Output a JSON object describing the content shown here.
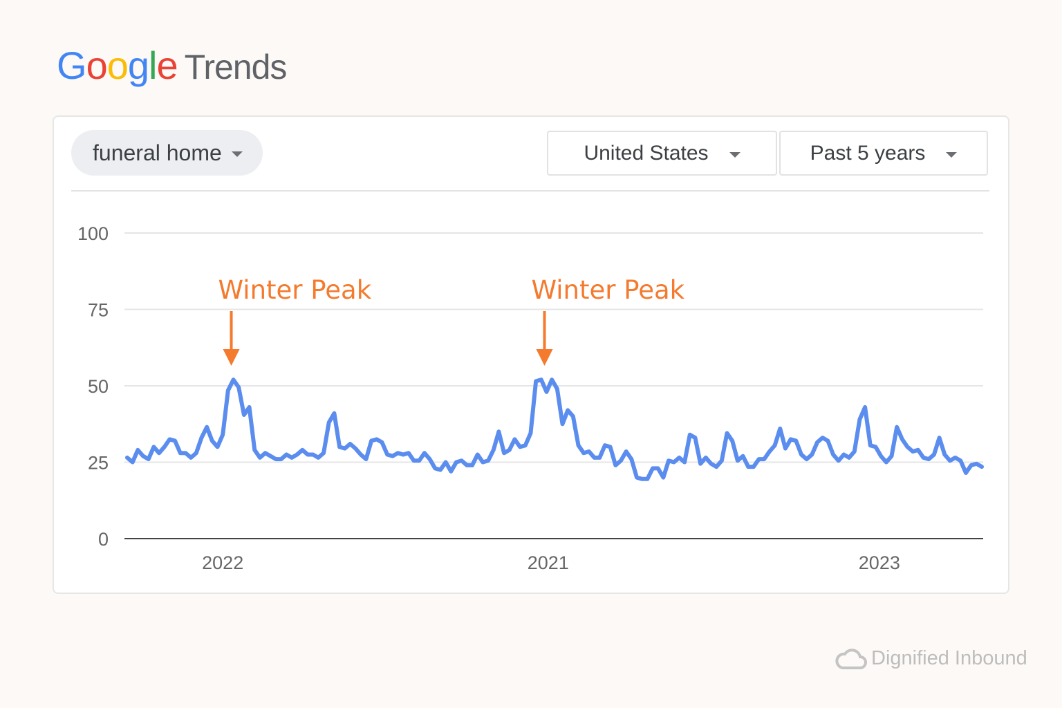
{
  "logo": {
    "google_letters": [
      "G",
      "o",
      "o",
      "g",
      "l",
      "e"
    ],
    "google_colors": [
      "#4285f4",
      "#ea4335",
      "#fbbc05",
      "#4285f4",
      "#34a853",
      "#ea4335"
    ],
    "trends": "Trends"
  },
  "search_term": {
    "label": "funeral home",
    "icon": "caret-down-icon"
  },
  "filters": {
    "region": "United States",
    "time_range": "Past 5 years"
  },
  "watermark": {
    "text": "Dignified Inbound",
    "icon": "cloud-icon"
  },
  "colors": {
    "line": "#5b8def",
    "annotation": "#f47a2e",
    "grid": "#e5e5e5",
    "axis": "#444444"
  },
  "chart_data": {
    "type": "line",
    "title": "",
    "xlabel": "",
    "ylabel": "",
    "ylim": [
      0,
      100
    ],
    "y_ticks": [
      0,
      25,
      50,
      75,
      100
    ],
    "grid": true,
    "x_ticks": [
      {
        "label": "2022",
        "at_index": 18
      },
      {
        "label": "2021",
        "at_index": 79.3
      },
      {
        "label": "2023",
        "at_index": 141.7
      }
    ],
    "series": [
      {
        "values": [
          26.5,
          25,
          29,
          27,
          26,
          30,
          28,
          30,
          32.5,
          32,
          28,
          28,
          26.5,
          28,
          33,
          36.5,
          32,
          30,
          34,
          48.5,
          52,
          49.5,
          40.5,
          43,
          29,
          26.5,
          28,
          27,
          26,
          26,
          27.5,
          26.5,
          27.5,
          29,
          27.5,
          27.5,
          26.5,
          28,
          38,
          41,
          30,
          29.5,
          31,
          29.5,
          27.5,
          26,
          32,
          32.5,
          31.5,
          27.5,
          27,
          28,
          27.5,
          28,
          25.5,
          25.5,
          28,
          26,
          23,
          22.5,
          25,
          22,
          25,
          25.5,
          24,
          24,
          27.5,
          25,
          25.5,
          29,
          35,
          28,
          29,
          32.5,
          30,
          30.5,
          34.5,
          51.5,
          52,
          48,
          52,
          49,
          37.5,
          42,
          40,
          30.5,
          28,
          28.5,
          26.5,
          26.5,
          30.5,
          30,
          24,
          25.5,
          28.5,
          26,
          20,
          19.5,
          19.5,
          23,
          23,
          20,
          25.5,
          25,
          26.5,
          25,
          34,
          33,
          24.5,
          26.5,
          24.5,
          23.5,
          25.5,
          34.5,
          32,
          25.5,
          27,
          23.5,
          23.5,
          26,
          26,
          28.5,
          30.5,
          36,
          29.5,
          32.5,
          32,
          27.5,
          26,
          27.5,
          31.5,
          33,
          32,
          27.5,
          25.5,
          27.5,
          26.5,
          28.5,
          39,
          43,
          30.5,
          30,
          27,
          25,
          27,
          36.5,
          32.5,
          30,
          28.5,
          29,
          26.5,
          26,
          27.5,
          33,
          27.5,
          25.5,
          26.5,
          25.5,
          21.5,
          24,
          24.5,
          23.5
        ]
      }
    ],
    "annotations": [
      {
        "text": "Winter Peak",
        "at_index": 20,
        "arrow": "down"
      },
      {
        "text": "Winter Peak",
        "at_index": 79,
        "arrow": "down"
      }
    ]
  }
}
